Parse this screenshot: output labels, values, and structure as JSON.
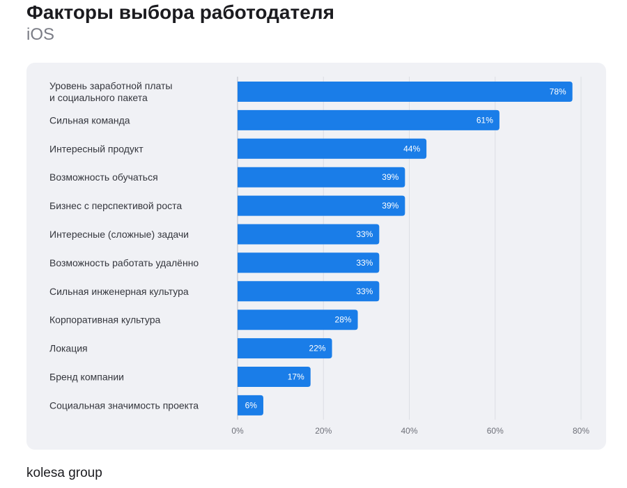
{
  "header": {
    "title": "Факторы выбора работодателя",
    "subtitle": "iOS"
  },
  "footer": {
    "brand": "kolesa group"
  },
  "chart_data": {
    "type": "bar",
    "orientation": "horizontal",
    "title": "Факторы выбора работодателя",
    "subtitle": "iOS",
    "categories": [
      [
        "Уровень заработной платы",
        "и социального пакета"
      ],
      [
        "Сильная команда"
      ],
      [
        "Интересный продукт"
      ],
      [
        "Возможность обучаться"
      ],
      [
        "Бизнес с перспективой роста"
      ],
      [
        "Интересные (сложные) задачи"
      ],
      [
        "Возможность работать удалённо"
      ],
      [
        "Сильная инженерная культура"
      ],
      [
        "Корпоративная культура"
      ],
      [
        "Локация"
      ],
      [
        "Бренд компании"
      ],
      [
        "Социальная значимость проекта"
      ]
    ],
    "values": [
      78,
      61,
      44,
      39,
      39,
      33,
      33,
      33,
      28,
      22,
      17,
      6
    ],
    "value_labels": [
      "78%",
      "61%",
      "44%",
      "39%",
      "39%",
      "33%",
      "33%",
      "33%",
      "28%",
      "22%",
      "17%",
      "6%"
    ],
    "xlim": [
      0,
      80
    ],
    "xticks": [
      0,
      20,
      40,
      60,
      80
    ],
    "xtick_labels": [
      "0%",
      "20%",
      "40%",
      "60%",
      "80%"
    ],
    "grid": true,
    "legend": "none",
    "bar_color": "#1a7de8"
  }
}
